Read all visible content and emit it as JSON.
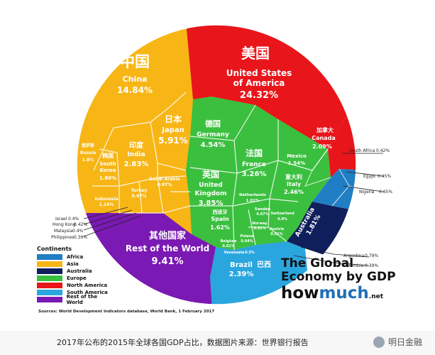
{
  "chart_data": {
    "type": "voronoi-treemap",
    "title": "The Global Economy by GDP",
    "source": "Sources: World Development Indicators database, World Bank, 1 February 2017",
    "brand": {
      "name_left": "how",
      "name_mid": "much",
      "name_right": ".net"
    },
    "legend": {
      "title": "Continents",
      "entries": [
        {
          "name": "Africa",
          "color": "#1f7ec4"
        },
        {
          "name": "Asia",
          "color": "#f7b615"
        },
        {
          "name": "Australia",
          "color": "#0f1f5c"
        },
        {
          "name": "Europe",
          "color": "#3bbf3f"
        },
        {
          "name": "North America",
          "color": "#e8151a"
        },
        {
          "name": "South America",
          "color": "#2aa6de"
        },
        {
          "name": "Rest of the World",
          "color": "#7a19b3"
        }
      ]
    },
    "regions": [
      {
        "key": "usa",
        "zh": "美国",
        "name": "United States of America",
        "value": "24.32%"
      },
      {
        "key": "china",
        "zh": "中国",
        "name": "China",
        "value": "14.84%"
      },
      {
        "key": "japan",
        "zh": "日本",
        "name": "Japan",
        "value": "5.91%"
      },
      {
        "key": "germany",
        "zh": "德国",
        "name": "Germany",
        "value": "4.54%"
      },
      {
        "key": "uk",
        "zh": "英国",
        "name": "United Kingdom",
        "value": "3.85%"
      },
      {
        "key": "france",
        "zh": "法国",
        "name": "France",
        "value": "3.26%"
      },
      {
        "key": "india",
        "zh": "印度",
        "name": "India",
        "value": "2.83%"
      },
      {
        "key": "italy",
        "zh": "意大利",
        "name": "Italy",
        "value": "2.46%"
      },
      {
        "key": "brazil",
        "zh": "巴西",
        "name": "Brazil",
        "value": "2.39%"
      },
      {
        "key": "canada",
        "zh": "加拿大",
        "name": "Canada",
        "value": "2.09%"
      },
      {
        "key": "korea",
        "zh": "韩国",
        "name": "South Korea",
        "value": "1.86%"
      },
      {
        "key": "australia",
        "zh": "",
        "name": "Australia",
        "value": "1.81%"
      },
      {
        "key": "russia",
        "zh": "俄罗斯",
        "name": "Russia",
        "value": "1.8%"
      },
      {
        "key": "spain",
        "zh": "西班牙",
        "name": "Spain",
        "value": "1.62%"
      },
      {
        "key": "mexico",
        "zh": "",
        "name": "Mexico",
        "value": "1.54%"
      },
      {
        "key": "indonesia",
        "zh": "",
        "name": "Indonesia",
        "value": "1.16%"
      },
      {
        "key": "netherlands",
        "zh": "",
        "name": "Netherlands",
        "value": "1.01%"
      },
      {
        "key": "turkey",
        "zh": "",
        "name": "Turkey",
        "value": "0.97%"
      },
      {
        "key": "saudi",
        "zh": "",
        "name": "Saudi Arabia",
        "value": "0.87%"
      },
      {
        "key": "switzerland",
        "zh": "",
        "name": "Switzerland",
        "value": "0.9%"
      },
      {
        "key": "sweden",
        "zh": "",
        "name": "Sweden",
        "value": "0.67%"
      },
      {
        "key": "poland",
        "zh": "",
        "name": "Poland",
        "value": "0.64%"
      },
      {
        "key": "belgium",
        "zh": "",
        "name": "Belgium",
        "value": "0.61%"
      },
      {
        "key": "norway",
        "zh": "",
        "name": "Norway",
        "value": "0.52%"
      },
      {
        "key": "austria",
        "zh": "",
        "name": "Austria",
        "value": "0.51%"
      },
      {
        "key": "venezuela",
        "zh": "",
        "name": "Venezuela",
        "value": "0.5%"
      },
      {
        "key": "row",
        "zh": "其他国家",
        "name": "Rest of the World",
        "value": "9.41%"
      }
    ],
    "callouts": [
      {
        "name": "South Africa",
        "value": "0.42%"
      },
      {
        "name": "Egypt",
        "value": "0.45%"
      },
      {
        "name": "Nigeria",
        "value": "0.65%"
      },
      {
        "name": "Argentina",
        "value": "0.79%"
      },
      {
        "name": "Colombia",
        "value": "0.39%"
      },
      {
        "name": "Israel",
        "value": "0.4%"
      },
      {
        "name": "Hong Kong",
        "value": "0.42%"
      },
      {
        "name": "Malaysia",
        "value": "0.4%"
      },
      {
        "name": "Philippines",
        "value": "0.39%"
      }
    ]
  },
  "caption": {
    "text": "2017年公布的2015年全球各国GDP占比，数据图片来源：世界银行报告",
    "watermark": "明日金融"
  }
}
